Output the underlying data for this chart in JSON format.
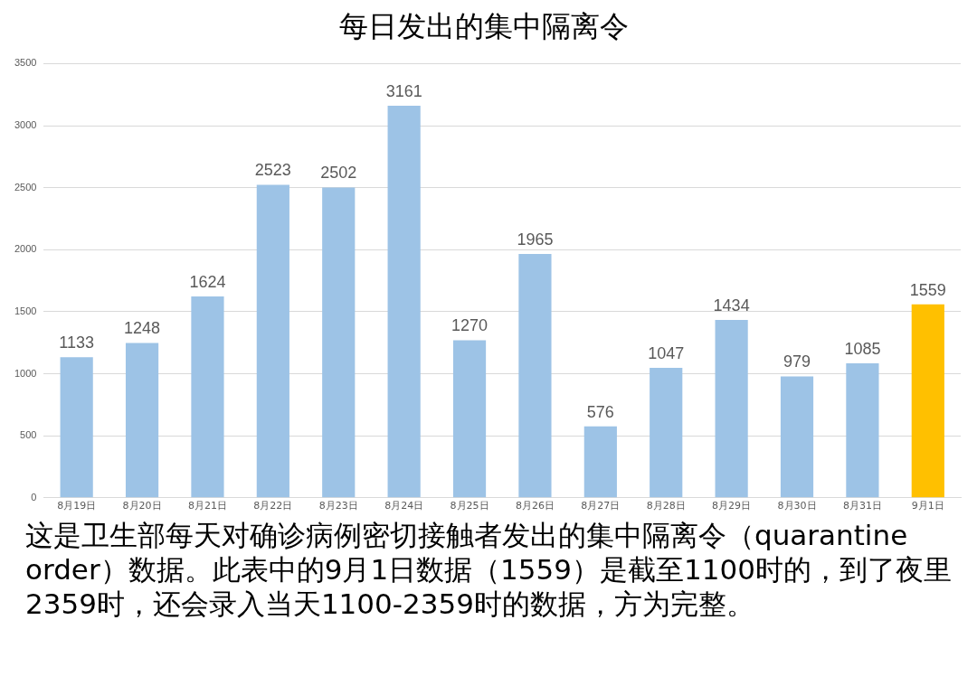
{
  "chart_data": {
    "type": "bar",
    "title": "每日发出的集中隔离令",
    "categories": [
      "8月19日",
      "8月20日",
      "8月21日",
      "8月22日",
      "8月23日",
      "8月24日",
      "8月25日",
      "8月26日",
      "8月27日",
      "8月28日",
      "8月29日",
      "8月30日",
      "8月31日",
      "9月1日"
    ],
    "values": [
      1133,
      1248,
      1624,
      2523,
      2502,
      3161,
      1270,
      1965,
      576,
      1047,
      1434,
      979,
      1085,
      1559
    ],
    "colors": [
      "#9dc3e6",
      "#9dc3e6",
      "#9dc3e6",
      "#9dc3e6",
      "#9dc3e6",
      "#9dc3e6",
      "#9dc3e6",
      "#9dc3e6",
      "#9dc3e6",
      "#9dc3e6",
      "#9dc3e6",
      "#9dc3e6",
      "#9dc3e6",
      "#ffc000"
    ],
    "ylim": [
      0,
      3500
    ],
    "yticks": [
      0,
      500,
      1000,
      1500,
      2000,
      2500,
      3000,
      3500
    ],
    "grid": "y",
    "legend": false,
    "data_labels": true,
    "annotations": [
      "这是卫生部每天对确诊病例密切接触者发出的集中隔离令（quarantine order）数据。此表中的9月1日数据（1559）是截至1100时的，到了夜里2359时，还会录入当天1100-2359时的数据，方为完整。"
    ]
  }
}
